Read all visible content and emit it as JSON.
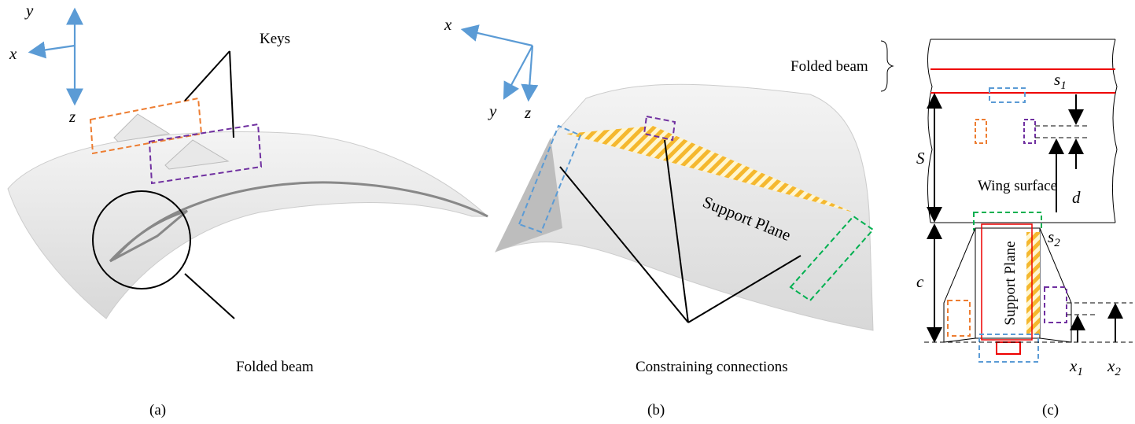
{
  "panel_a": {
    "axes": {
      "y": "y",
      "x": "x",
      "z": "z"
    },
    "keys_label": "Keys",
    "folded_beam_label": "Folded beam",
    "caption": "(a)"
  },
  "panel_b": {
    "axes": {
      "x": "x",
      "y": "y",
      "z": "z"
    },
    "support_plane_label": "Support Plane",
    "connections_label": "Constraining connections",
    "caption": "(b)"
  },
  "panel_c": {
    "folded_beam_label": "Folded beam",
    "s1": {
      "symbol": "s",
      "subscript": "1"
    },
    "S": "S",
    "wing_surface_label": "Wing surface",
    "d": "d",
    "s2": {
      "symbol": "s",
      "subscript": "2"
    },
    "c": "c",
    "support_plane_label": "Support Plane",
    "x1": {
      "symbol": "x",
      "subscript": "1"
    },
    "x2": {
      "symbol": "x",
      "subscript": "2"
    },
    "caption": "(c)"
  }
}
